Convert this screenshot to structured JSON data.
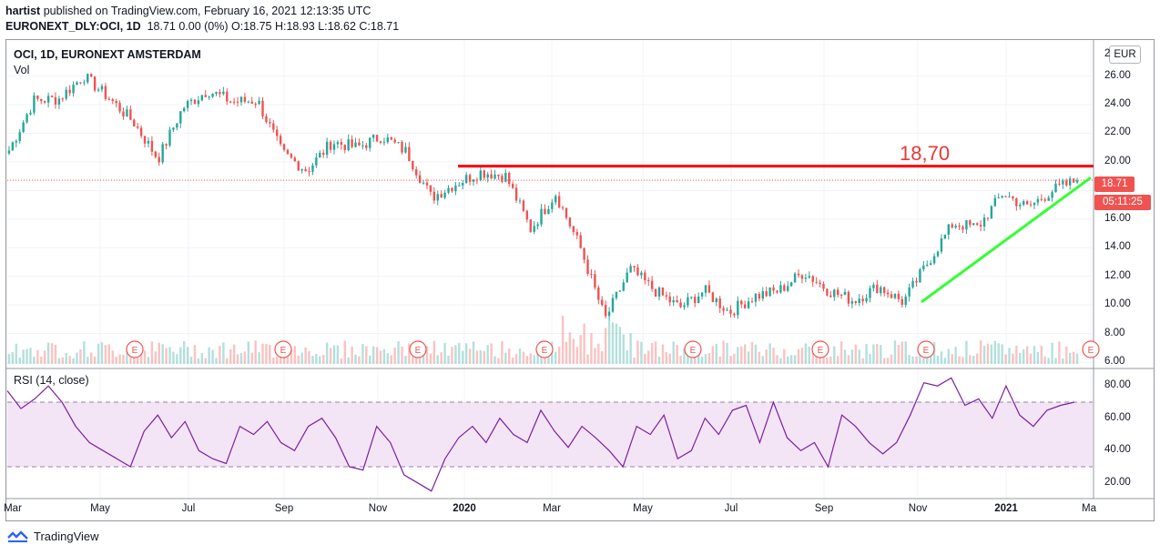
{
  "header": {
    "publisher": "hartist",
    "published_text": "published on TradingView.com, February 16, 2021 12:13:35 UTC",
    "symbol_full": "EURONEXT_DLY:OCI, 1D",
    "ohlc_text": "18.71 0.00 (0%) O:18.75 H:18.93 L:18.62 C:18.71"
  },
  "legend": {
    "title": "OCI, 1D, EURONEXT AMSTERDAM",
    "volume": "Vol",
    "rsi": "RSI (14, close)"
  },
  "currency": "EUR",
  "last_price": "18.71",
  "countdown": "05:11:25",
  "annotation": "18,70",
  "brand": "TradingView",
  "earnings_marker": "E",
  "price_axis": [
    "26.00",
    "24.00",
    "22.00",
    "20.00",
    "16.00",
    "14.00",
    "12.00",
    "10.00",
    "8.00",
    "6.00"
  ],
  "price_axis_top_partial": "2",
  "rsi_axis": [
    "80.00",
    "60.00",
    "40.00",
    "20.00"
  ],
  "time_axis": [
    {
      "label": "Mar",
      "bold": false
    },
    {
      "label": "May",
      "bold": false
    },
    {
      "label": "Jul",
      "bold": false
    },
    {
      "label": "Sep",
      "bold": false
    },
    {
      "label": "Nov",
      "bold": false
    },
    {
      "label": "2020",
      "bold": true
    },
    {
      "label": "Mar",
      "bold": false
    },
    {
      "label": "May",
      "bold": false
    },
    {
      "label": "Jul",
      "bold": false
    },
    {
      "label": "Sep",
      "bold": false
    },
    {
      "label": "Nov",
      "bold": false
    },
    {
      "label": "2021",
      "bold": true
    },
    {
      "label": "Ma",
      "bold": false
    }
  ],
  "colors": {
    "up": "#26a69a",
    "down": "#ef5350",
    "resistance": "#ff0000",
    "trendline": "#33ff33",
    "rsi_line": "#7b1fa2",
    "rsi_band": "#f3e5f5"
  },
  "chart_data": {
    "type": "candlestick",
    "title": "OCI, 1D, EURONEXT AMSTERDAM",
    "ylim": [
      6,
      27.5
    ],
    "price_path": [
      {
        "x": "Mar 2019",
        "y": 20.8
      },
      {
        "x": "Mar 2019",
        "y": 24.3
      },
      {
        "x": "Apr 2019",
        "y": 24.4
      },
      {
        "x": "Apr 2019",
        "y": 26.0
      },
      {
        "x": "May 2019",
        "y": 24.5
      },
      {
        "x": "May 2019",
        "y": 22.8
      },
      {
        "x": "Jun 2019",
        "y": 20.2
      },
      {
        "x": "Jun 2019",
        "y": 23.8
      },
      {
        "x": "Jul 2019",
        "y": 25.0
      },
      {
        "x": "Jul 2019",
        "y": 24.2
      },
      {
        "x": "Aug 2019",
        "y": 24.3
      },
      {
        "x": "Aug 2019",
        "y": 20.6
      },
      {
        "x": "Sep 2019",
        "y": 19.4
      },
      {
        "x": "Sep 2019",
        "y": 21.4
      },
      {
        "x": "Oct 2019",
        "y": 21.0
      },
      {
        "x": "Oct 2019",
        "y": 21.8
      },
      {
        "x": "Nov 2019",
        "y": 20.7
      },
      {
        "x": "Nov 2019",
        "y": 17.5
      },
      {
        "x": "Dec 2019",
        "y": 18.5
      },
      {
        "x": "Dec 2019",
        "y": 19.3
      },
      {
        "x": "Jan 2020",
        "y": 19.0
      },
      {
        "x": "Feb 2020",
        "y": 15.3
      },
      {
        "x": "Feb 2020",
        "y": 17.8
      },
      {
        "x": "Mar 2020",
        "y": 14.0
      },
      {
        "x": "Mar 2020",
        "y": 9.0
      },
      {
        "x": "Apr 2020",
        "y": 12.5
      },
      {
        "x": "May 2020",
        "y": 11.0
      },
      {
        "x": "May 2020",
        "y": 9.8
      },
      {
        "x": "Jun 2020",
        "y": 11.0
      },
      {
        "x": "Jul 2020",
        "y": 9.5
      },
      {
        "x": "Jul 2020",
        "y": 10.6
      },
      {
        "x": "Aug 2020",
        "y": 11.0
      },
      {
        "x": "Aug 2020",
        "y": 12.3
      },
      {
        "x": "Sep 2020",
        "y": 11.0
      },
      {
        "x": "Oct 2020",
        "y": 10.3
      },
      {
        "x": "Oct 2020",
        "y": 11.3
      },
      {
        "x": "Nov 2020",
        "y": 10.2
      },
      {
        "x": "Nov 2020",
        "y": 13.0
      },
      {
        "x": "Dec 2020",
        "y": 15.7
      },
      {
        "x": "Dec 2020",
        "y": 15.4
      },
      {
        "x": "Jan 2021",
        "y": 17.8
      },
      {
        "x": "Jan 2021",
        "y": 16.8
      },
      {
        "x": "Feb 2021",
        "y": 18.0
      },
      {
        "x": "Feb 2021",
        "y": 18.71
      }
    ],
    "resistance_level": 18.7,
    "trendline": {
      "from": {
        "x": "Nov 2020",
        "y": 10.2
      },
      "to": {
        "x": "Feb 2021",
        "y": 18.9
      }
    },
    "rsi": {
      "ylim": [
        12,
        88
      ],
      "band": [
        30,
        70
      ],
      "values": [
        77,
        66,
        72,
        80,
        70,
        55,
        45,
        40,
        35,
        30,
        52,
        62,
        48,
        58,
        40,
        35,
        32,
        55,
        50,
        58,
        45,
        40,
        55,
        60,
        48,
        30,
        28,
        55,
        45,
        25,
        20,
        15,
        35,
        48,
        55,
        45,
        60,
        50,
        45,
        65,
        52,
        42,
        55,
        48,
        40,
        30,
        55,
        50,
        62,
        35,
        40,
        60,
        50,
        65,
        68,
        45,
        70,
        48,
        40,
        45,
        30,
        62,
        55,
        45,
        38,
        45,
        62,
        82,
        80,
        85,
        68,
        72,
        60,
        80,
        62,
        55,
        65,
        68,
        70
      ]
    },
    "earnings_count": 8
  }
}
